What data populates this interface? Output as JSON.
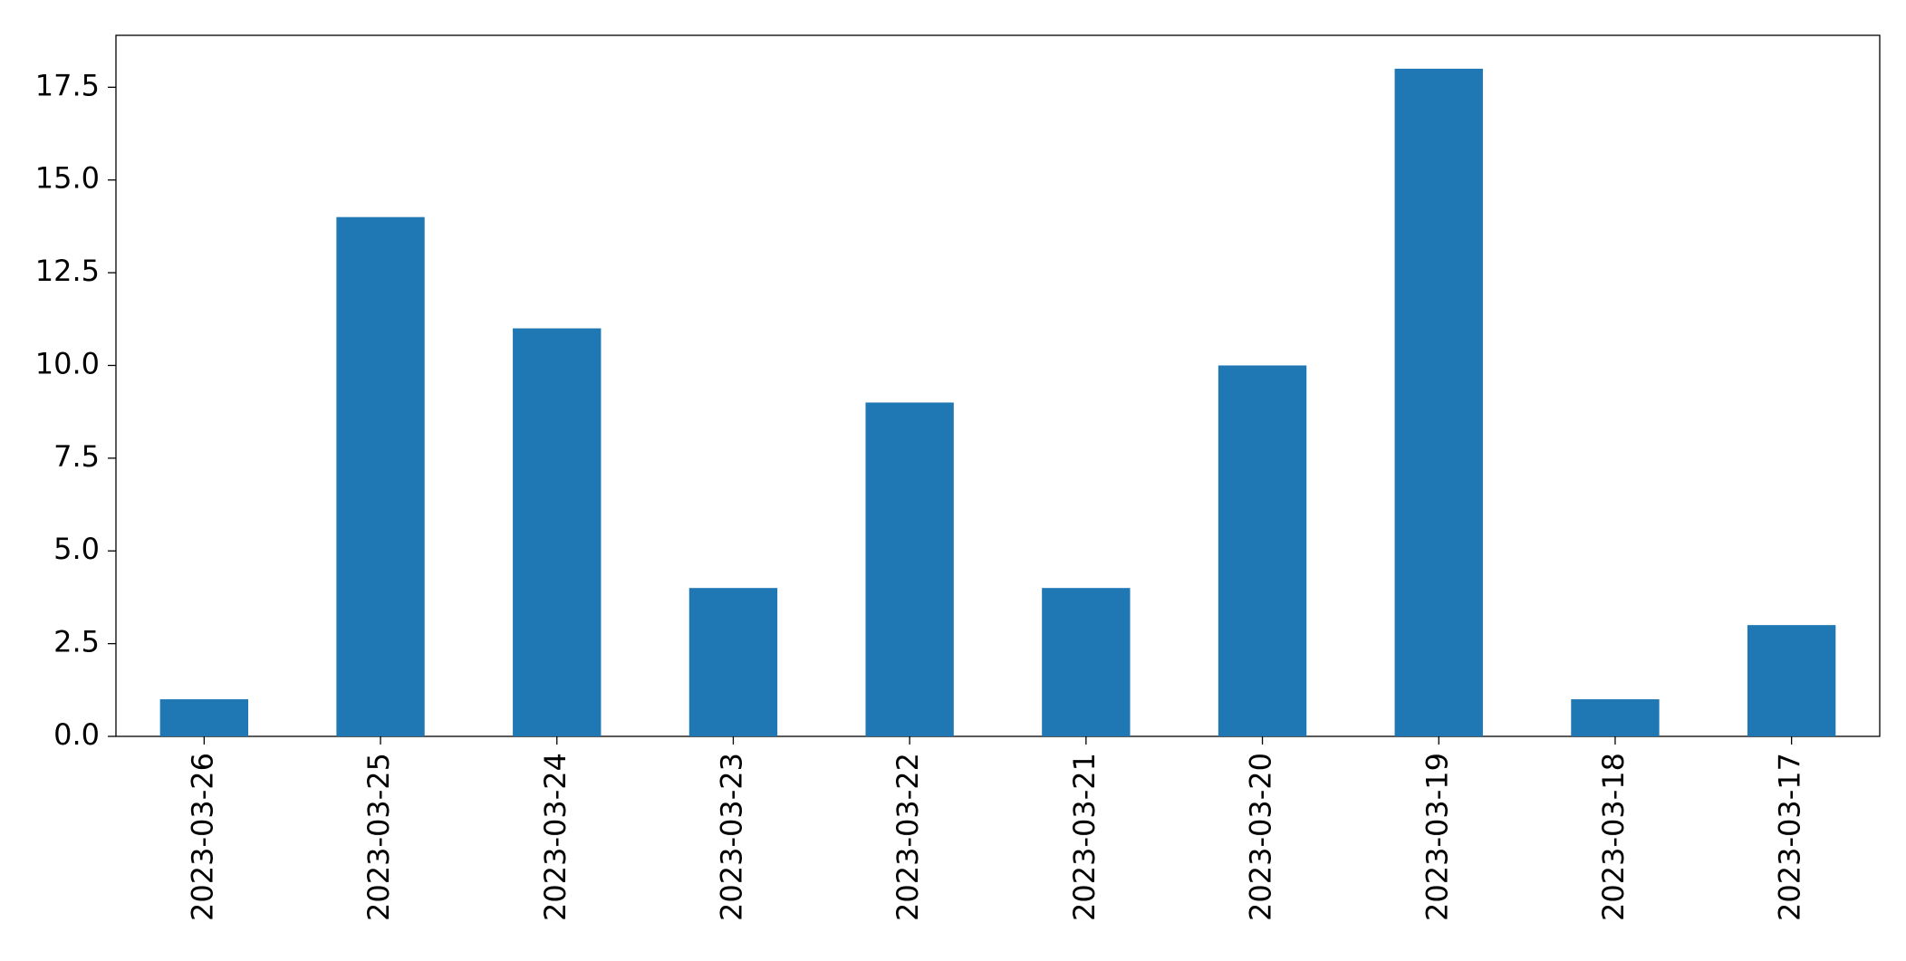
{
  "chart_data": {
    "type": "bar",
    "categories": [
      "2023-03-26",
      "2023-03-25",
      "2023-03-24",
      "2023-03-23",
      "2023-03-22",
      "2023-03-21",
      "2023-03-20",
      "2023-03-19",
      "2023-03-18",
      "2023-03-17"
    ],
    "values": [
      1,
      14,
      11,
      4,
      9,
      4,
      10,
      18,
      1,
      3
    ],
    "color": "#1f77b4",
    "ylim": [
      0,
      18.9
    ],
    "yticks": [
      {
        "value": 0,
        "label": "0.0"
      },
      2.5,
      {
        "value": 5,
        "label": "5.0"
      },
      7.5,
      {
        "value": 10,
        "label": "10.0"
      },
      12.5,
      {
        "value": 15,
        "label": "15.0"
      },
      17.5
    ],
    "grid": false
  }
}
